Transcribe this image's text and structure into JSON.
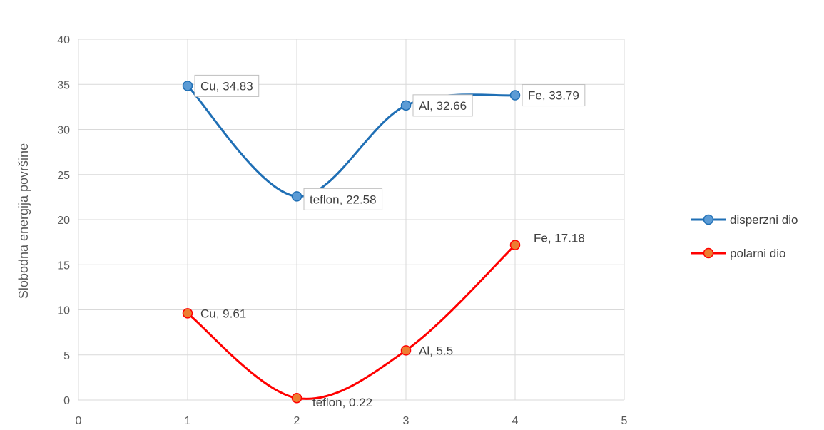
{
  "chart_data": {
    "type": "line",
    "title": "",
    "xlabel": "",
    "ylabel": "Slobodna energija površine",
    "xlim": [
      0,
      5
    ],
    "ylim": [
      0,
      40
    ],
    "x_ticks": [
      "0",
      "1",
      "2",
      "3",
      "4",
      "5"
    ],
    "y_ticks": [
      "0",
      "5",
      "10",
      "15",
      "20",
      "25",
      "30",
      "35",
      "40"
    ],
    "grid": true,
    "smooth": true,
    "legend_position": "right",
    "series": [
      {
        "name": "disperzni dio",
        "color": "#1f6fb5",
        "marker_fill": "#5b9bd5",
        "label_box": true,
        "points": [
          {
            "x": 1,
            "y": 34.83,
            "label": "Cu, 34.83"
          },
          {
            "x": 2,
            "y": 22.58,
            "label": "teflon, 22.58"
          },
          {
            "x": 3,
            "y": 32.66,
            "label": "Al, 32.66"
          },
          {
            "x": 4,
            "y": 33.79,
            "label": "Fe, 33.79"
          }
        ]
      },
      {
        "name": "polarni dio",
        "color": "#ff0000",
        "marker_fill": "#ed7d31",
        "label_box": false,
        "points": [
          {
            "x": 1,
            "y": 9.61,
            "label": "Cu, 9.61"
          },
          {
            "x": 2,
            "y": 0.22,
            "label": "teflon, 0.22"
          },
          {
            "x": 3,
            "y": 5.5,
            "label": "Al, 5.5"
          },
          {
            "x": 4,
            "y": 17.18,
            "label": "Fe, 17.18"
          }
        ]
      }
    ]
  }
}
